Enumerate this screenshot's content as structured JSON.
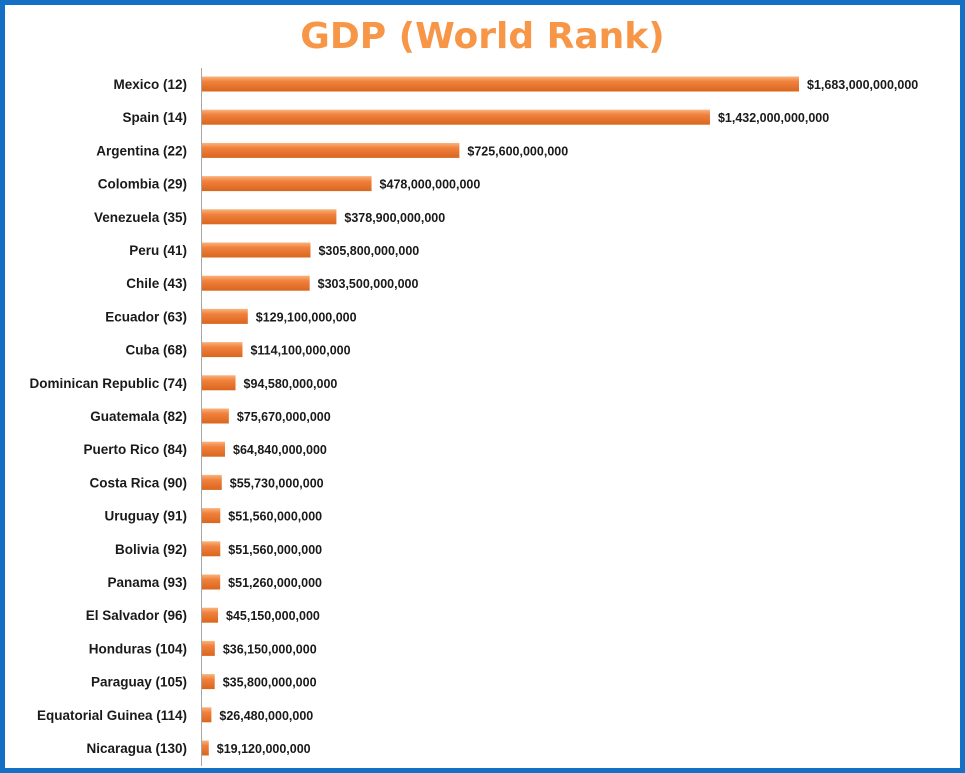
{
  "chart_data": {
    "type": "bar",
    "orientation": "horizontal",
    "title": "GDP (World Rank)",
    "xlabel": "",
    "ylabel": "",
    "grid": false,
    "legend": "none",
    "bar_color": "#f0803c",
    "bar_highlight_color": "#f9b47c",
    "title_color": "#f79646",
    "frame_color": "#1470c4",
    "categories": [
      "Mexico (12)",
      "Spain (14)",
      "Argentina (22)",
      "Colombia (29)",
      "Venezuela (35)",
      "Peru (41)",
      "Chile (43)",
      "Ecuador (63)",
      "Cuba (68)",
      "Dominican Republic (74)",
      "Guatemala (82)",
      "Puerto Rico (84)",
      "Costa Rica (90)",
      "Uruguay (91)",
      "Bolivia (92)",
      "Panama (93)",
      "El Salvador (96)",
      "Honduras (104)",
      "Paraguay (105)",
      "Equatorial Guinea (114)",
      "Nicaragua (130)"
    ],
    "values": [
      1683000000000,
      1432000000000,
      725600000000,
      478000000000,
      378900000000,
      305800000000,
      303500000000,
      129100000000,
      114100000000,
      94580000000,
      75670000000,
      64840000000,
      55730000000,
      51560000000,
      51560000000,
      51260000000,
      45150000000,
      36150000000,
      35800000000,
      26480000000,
      19120000000
    ],
    "value_labels": [
      "$1,683,000,000,000",
      "$1,432,000,000,000",
      "$725,600,000,000",
      "$478,000,000,000",
      "$378,900,000,000",
      "$305,800,000,000",
      "$303,500,000,000",
      "$129,100,000,000",
      "$114,100,000,000",
      "$94,580,000,000",
      "$75,670,000,000",
      "$64,840,000,000",
      "$55,730,000,000",
      "$51,560,000,000",
      "$51,560,000,000",
      "$51,260,000,000",
      "$45,150,000,000",
      "$36,150,000,000",
      "$35,800,000,000",
      "$26,480,000,000",
      "$19,120,000,000"
    ],
    "xlim": [
      0,
      1683000000000
    ]
  }
}
